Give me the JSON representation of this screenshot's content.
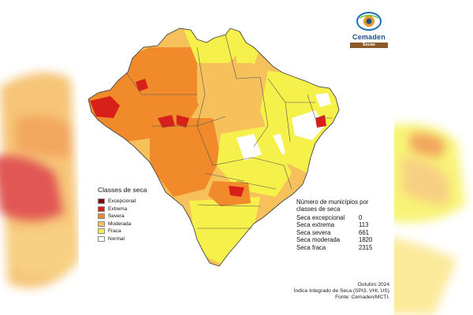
{
  "colors": {
    "excepcional": "#7a0c0c",
    "extrema": "#d8201b",
    "severa": "#f08a2a",
    "moderada": "#f6c15a",
    "fraca": "#f6f04a",
    "normal": "#ffffff"
  },
  "logo": {
    "icon": "eye-icon",
    "name": "Cemaden",
    "subtitle": "Secas"
  },
  "legend": {
    "title": "Classes de seca",
    "items": [
      {
        "label": "Excepcional",
        "color": "#7a0c0c"
      },
      {
        "label": "Extrema",
        "color": "#d8201b"
      },
      {
        "label": "Severa",
        "color": "#f08a2a"
      },
      {
        "label": "Moderada",
        "color": "#f6c15a"
      },
      {
        "label": "Fraca",
        "color": "#f6f04a"
      },
      {
        "label": "Normal",
        "color": "#ffffff"
      }
    ]
  },
  "stats": {
    "title": "Número de municípios por classes de seca",
    "rows": [
      {
        "label": "Seca excepcional",
        "value": "0"
      },
      {
        "label": "Seca extrema",
        "value": "113"
      },
      {
        "label": "Seca severa",
        "value": "661"
      },
      {
        "label": "Seca moderada",
        "value": "1820"
      },
      {
        "label": "Seca fraca",
        "value": "2315"
      }
    ]
  },
  "footer": {
    "date": "Outubro 2024",
    "index": "Índice Integrado de Seca (SPI3, VHI, US)",
    "source": "Fonte: Cemaden/MCTI."
  }
}
